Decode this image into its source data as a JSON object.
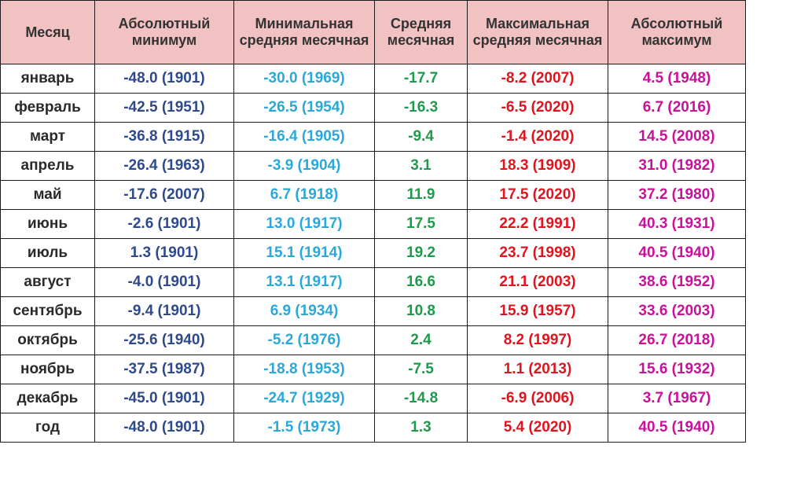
{
  "headers": [
    "Месяц",
    "Абсолютный минимум",
    "Минимальная средняя месячная",
    "Средняя месячная",
    "Максимальная средняя месячная",
    "Абсолютный максимум"
  ],
  "colors": {
    "header_bg": "#f2c2c2",
    "abs_min": "#2e4a8c",
    "min_avg": "#2aa8d8",
    "avg": "#1f9a4c",
    "max_avg": "#e0141e",
    "abs_max": "#c8129a"
  },
  "rows": [
    [
      "январь",
      "-48.0 (1901)",
      "-30.0 (1969)",
      "-17.7",
      "-8.2 (2007)",
      "4.5 (1948)"
    ],
    [
      "февраль",
      "-42.5 (1951)",
      "-26.5 (1954)",
      "-16.3",
      "-6.5 (2020)",
      "6.7 (2016)"
    ],
    [
      "март",
      "-36.8 (1915)",
      "-16.4 (1905)",
      "-9.4",
      "-1.4 (2020)",
      "14.5 (2008)"
    ],
    [
      "апрель",
      "-26.4 (1963)",
      "-3.9 (1904)",
      "3.1",
      "18.3 (1909)",
      "31.0 (1982)"
    ],
    [
      "май",
      "-17.6 (2007)",
      "6.7 (1918)",
      "11.9",
      "17.5 (2020)",
      "37.2 (1980)"
    ],
    [
      "июнь",
      "-2.6 (1901)",
      "13.0 (1917)",
      "17.5",
      "22.2 (1991)",
      "40.3 (1931)"
    ],
    [
      "июль",
      "1.3 (1901)",
      "15.1 (1914)",
      "19.2",
      "23.7 (1998)",
      "40.5 (1940)"
    ],
    [
      "август",
      "-4.0 (1901)",
      "13.1 (1917)",
      "16.6",
      "21.1 (2003)",
      "38.6 (1952)"
    ],
    [
      "сентябрь",
      "-9.4 (1901)",
      "6.9 (1934)",
      "10.8",
      "15.9 (1957)",
      "33.6 (2003)"
    ],
    [
      "октябрь",
      "-25.6 (1940)",
      "-5.2 (1976)",
      "2.4",
      "8.2 (1997)",
      "26.7 (2018)"
    ],
    [
      "ноябрь",
      "-37.5 (1987)",
      "-18.8 (1953)",
      "-7.5",
      "1.1 (2013)",
      "15.6 (1932)"
    ],
    [
      "декабрь",
      "-45.0 (1901)",
      "-24.7 (1929)",
      "-14.8",
      "-6.9 (2006)",
      "3.7 (1967)"
    ],
    [
      "год",
      "-48.0 (1901)",
      "-1.5 (1973)",
      "1.3",
      "5.4 (2020)",
      "40.5 (1940)"
    ]
  ]
}
